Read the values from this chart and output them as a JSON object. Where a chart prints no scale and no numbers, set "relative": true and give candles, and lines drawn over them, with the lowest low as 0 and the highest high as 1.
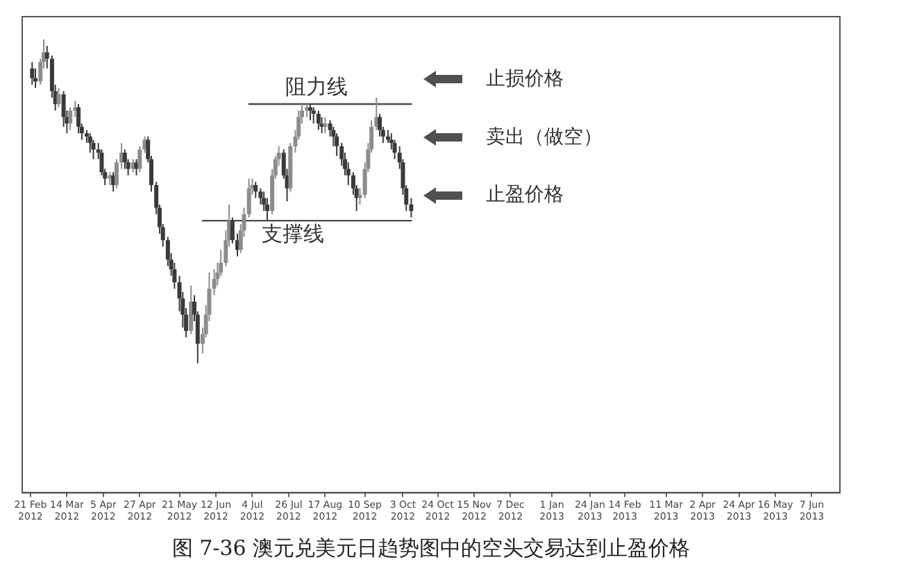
{
  "chart_data": {
    "type": "candlestick",
    "title": "图 7-36 澳元兑美元日趋势图中的空头交易达到止盈价格",
    "relative": true,
    "colors": [
      "#3a3a3a",
      "#3a3a3a",
      "#8c8c8c",
      "#8c8c8c",
      "#3a3a3a",
      "#3a3a3a",
      "#3a3a3a",
      "#8c8c8c",
      "#3a3a3a",
      "#3a3a3a",
      "#8c8c8c",
      "#8c8c8c",
      "#3a3a3a",
      "#3a3a3a",
      "#3a3a3a",
      "#3a3a3a",
      "#3a3a3a",
      "#3a3a3a",
      "#3a3a3a",
      "#3a3a3a",
      "#8c8c8c",
      "#3a3a3a",
      "#8c8c8c",
      "#8c8c8c",
      "#3a3a3a",
      "#3a3a3a",
      "#8c8c8c",
      "#3a3a3a",
      "#8c8c8c",
      "#8c8c8c",
      "#3a3a3a",
      "#3a3a3a",
      "#3a3a3a",
      "#3a3a3a",
      "#3a3a3a",
      "#3a3a3a",
      "#3a3a3a",
      "#3a3a3a",
      "#3a3a3a",
      "#3a3a3a",
      "#3a3a3a",
      "#8c8c8c",
      "#3a3a3a",
      "#3a3a3a",
      "#8c8c8c",
      "#8c8c8c",
      "#8c8c8c",
      "#8c8c8c",
      "#8c8c8c",
      "#8c8c8c",
      "#8c8c8c",
      "#8c8c8c",
      "#3a3a3a",
      "#3a3a3a",
      "#8c8c8c",
      "#8c8c8c",
      "#8c8c8c",
      "#8c8c8c",
      "#3a3a3a",
      "#3a3a3a",
      "#3a3a3a",
      "#3a3a3a",
      "#8c8c8c",
      "#8c8c8c",
      "#8c8c8c",
      "#3a3a3a",
      "#3a3a3a",
      "#8c8c8c",
      "#8c8c8c",
      "#8c8c8c",
      "#8c8c8c",
      "#8c8c8c",
      "#3a3a3a",
      "#3a3a3a",
      "#3a3a3a",
      "#3a3a3a",
      "#8c8c8c",
      "#3a3a3a",
      "#3a3a3a",
      "#3a3a3a",
      "#3a3a3a",
      "#3a3a3a",
      "#3a3a3a",
      "#3a3a3a",
      "#3a3a3a",
      "#8c8c8c",
      "#8c8c8c",
      "#8c8c8c",
      "#8c8c8c",
      "#8c8c8c",
      "#3a3a3a",
      "#3a3a3a",
      "#3a3a3a",
      "#3a3a3a",
      "#3a3a3a",
      "#3a3a3a",
      "#3a3a3a",
      "#3a3a3a",
      "#3a3a3a"
    ],
    "x": [
      "2012-02-22",
      "2012-02-24",
      "2012-02-27",
      "2012-02-29",
      "2012-03-02",
      "2012-03-05",
      "2012-03-07",
      "2012-03-09",
      "2012-03-12",
      "2012-03-14",
      "2012-03-16",
      "2012-03-19",
      "2012-03-21",
      "2012-03-23",
      "2012-03-26",
      "2012-03-28",
      "2012-03-30",
      "2012-04-02",
      "2012-04-04",
      "2012-04-06",
      "2012-04-09",
      "2012-04-11",
      "2012-04-13",
      "2012-04-16",
      "2012-04-18",
      "2012-04-20",
      "2012-04-23",
      "2012-04-25",
      "2012-04-27",
      "2012-04-30",
      "2012-05-02",
      "2012-05-04",
      "2012-05-07",
      "2012-05-09",
      "2012-05-11",
      "2012-05-14",
      "2012-05-16",
      "2012-05-18",
      "2012-05-21",
      "2012-05-23",
      "2012-05-25",
      "2012-05-28",
      "2012-05-30",
      "2012-06-01",
      "2012-06-04",
      "2012-06-06",
      "2012-06-08",
      "2012-06-11",
      "2012-06-13",
      "2012-06-15",
      "2012-06-18",
      "2012-06-20",
      "2012-06-22",
      "2012-06-25",
      "2012-06-27",
      "2012-06-29",
      "2012-07-02",
      "2012-07-04",
      "2012-07-06",
      "2012-07-09",
      "2012-07-11",
      "2012-07-13",
      "2012-07-16",
      "2012-07-18",
      "2012-07-20",
      "2012-07-23",
      "2012-07-25",
      "2012-07-27",
      "2012-07-30",
      "2012-08-01",
      "2012-08-03",
      "2012-08-06",
      "2012-08-08",
      "2012-08-10",
      "2012-08-13",
      "2012-08-15",
      "2012-08-17",
      "2012-08-20",
      "2012-08-22",
      "2012-08-24",
      "2012-08-27",
      "2012-08-29",
      "2012-08-31",
      "2012-09-03",
      "2012-09-05",
      "2012-09-07",
      "2012-09-10",
      "2012-09-12",
      "2012-09-14",
      "2012-09-17",
      "2012-09-19",
      "2012-09-21",
      "2012-09-24",
      "2012-09-26",
      "2012-09-28",
      "2012-10-01",
      "2012-10-03",
      "2012-10-05",
      "2012-10-08"
    ],
    "ohlc": [
      [
        0.91,
        0.93,
        0.86,
        0.88
      ],
      [
        0.88,
        0.91,
        0.85,
        0.87
      ],
      [
        0.87,
        0.94,
        0.86,
        0.93
      ],
      [
        0.93,
        1,
        0.91,
        0.96
      ],
      [
        0.96,
        0.98,
        0.91,
        0.94
      ],
      [
        0.94,
        0.95,
        0.82,
        0.84
      ],
      [
        0.84,
        0.86,
        0.78,
        0.8
      ],
      [
        0.8,
        0.85,
        0.79,
        0.83
      ],
      [
        0.83,
        0.84,
        0.73,
        0.76
      ],
      [
        0.76,
        0.78,
        0.71,
        0.74
      ],
      [
        0.74,
        0.79,
        0.72,
        0.78
      ],
      [
        0.78,
        0.81,
        0.76,
        0.79
      ],
      [
        0.79,
        0.8,
        0.71,
        0.73
      ],
      [
        0.73,
        0.74,
        0.69,
        0.71
      ],
      [
        0.71,
        0.72,
        0.68,
        0.7
      ],
      [
        0.7,
        0.71,
        0.65,
        0.68
      ],
      [
        0.68,
        0.69,
        0.63,
        0.66
      ],
      [
        0.66,
        0.68,
        0.63,
        0.65
      ],
      [
        0.65,
        0.66,
        0.58,
        0.59
      ],
      [
        0.59,
        0.6,
        0.55,
        0.57
      ],
      [
        0.57,
        0.59,
        0.55,
        0.58
      ],
      [
        0.58,
        0.59,
        0.53,
        0.55
      ],
      [
        0.55,
        0.63,
        0.54,
        0.62
      ],
      [
        0.62,
        0.68,
        0.6,
        0.65
      ],
      [
        0.65,
        0.66,
        0.6,
        0.62
      ],
      [
        0.62,
        0.63,
        0.58,
        0.6
      ],
      [
        0.6,
        0.63,
        0.59,
        0.62
      ],
      [
        0.62,
        0.63,
        0.58,
        0.6
      ],
      [
        0.6,
        0.67,
        0.59,
        0.66
      ],
      [
        0.66,
        0.7,
        0.65,
        0.69
      ],
      [
        0.69,
        0.7,
        0.62,
        0.63
      ],
      [
        0.63,
        0.64,
        0.53,
        0.55
      ],
      [
        0.55,
        0.56,
        0.46,
        0.48
      ],
      [
        0.48,
        0.49,
        0.4,
        0.42
      ],
      [
        0.42,
        0.43,
        0.36,
        0.38
      ],
      [
        0.38,
        0.39,
        0.3,
        0.32
      ],
      [
        0.32,
        0.34,
        0.27,
        0.29
      ],
      [
        0.29,
        0.31,
        0.23,
        0.25
      ],
      [
        0.25,
        0.27,
        0.16,
        0.2
      ],
      [
        0.2,
        0.22,
        0.11,
        0.15
      ],
      [
        0.15,
        0.17,
        0.08,
        0.1
      ],
      [
        0.1,
        0.24,
        0.09,
        0.19
      ],
      [
        0.19,
        0.21,
        0.13,
        0.15
      ],
      [
        0.15,
        0.16,
        0,
        0.06
      ],
      [
        0.06,
        0.11,
        0.03,
        0.09
      ],
      [
        0.09,
        0.18,
        0.08,
        0.15
      ],
      [
        0.15,
        0.28,
        0.13,
        0.23
      ],
      [
        0.23,
        0.29,
        0.21,
        0.26
      ],
      [
        0.26,
        0.31,
        0.24,
        0.28
      ],
      [
        0.28,
        0.35,
        0.27,
        0.31
      ],
      [
        0.31,
        0.41,
        0.3,
        0.38
      ],
      [
        0.38,
        0.49,
        0.36,
        0.44
      ],
      [
        0.44,
        0.45,
        0.37,
        0.38
      ],
      [
        0.38,
        0.4,
        0.33,
        0.35
      ],
      [
        0.35,
        0.43,
        0.34,
        0.41
      ],
      [
        0.41,
        0.48,
        0.39,
        0.46
      ],
      [
        0.46,
        0.57,
        0.45,
        0.54
      ],
      [
        0.54,
        0.57,
        0.52,
        0.55
      ],
      [
        0.55,
        0.56,
        0.51,
        0.53
      ],
      [
        0.53,
        0.54,
        0.49,
        0.51
      ],
      [
        0.51,
        0.53,
        0.47,
        0.49
      ],
      [
        0.49,
        0.51,
        0.44,
        0.47
      ],
      [
        0.47,
        0.6,
        0.46,
        0.58
      ],
      [
        0.58,
        0.64,
        0.57,
        0.63
      ],
      [
        0.63,
        0.67,
        0.61,
        0.65
      ],
      [
        0.65,
        0.66,
        0.57,
        0.58
      ],
      [
        0.58,
        0.6,
        0.5,
        0.54
      ],
      [
        0.54,
        0.68,
        0.53,
        0.67
      ],
      [
        0.67,
        0.72,
        0.65,
        0.7
      ],
      [
        0.7,
        0.78,
        0.69,
        0.76
      ],
      [
        0.76,
        0.8,
        0.74,
        0.78
      ],
      [
        0.78,
        0.8,
        0.76,
        0.79
      ],
      [
        0.79,
        0.8,
        0.75,
        0.78
      ],
      [
        0.78,
        0.79,
        0.74,
        0.77
      ],
      [
        0.77,
        0.78,
        0.72,
        0.74
      ],
      [
        0.74,
        0.76,
        0.71,
        0.73
      ],
      [
        0.73,
        0.76,
        0.71,
        0.74
      ],
      [
        0.74,
        0.75,
        0.7,
        0.72
      ],
      [
        0.72,
        0.73,
        0.67,
        0.7
      ],
      [
        0.7,
        0.71,
        0.64,
        0.67
      ],
      [
        0.67,
        0.68,
        0.61,
        0.63
      ],
      [
        0.63,
        0.65,
        0.58,
        0.6
      ],
      [
        0.6,
        0.62,
        0.55,
        0.58
      ],
      [
        0.58,
        0.59,
        0.52,
        0.54
      ],
      [
        0.54,
        0.55,
        0.47,
        0.51
      ],
      [
        0.51,
        0.54,
        0.49,
        0.52
      ],
      [
        0.52,
        0.62,
        0.51,
        0.6
      ],
      [
        0.6,
        0.68,
        0.59,
        0.66
      ],
      [
        0.66,
        0.75,
        0.65,
        0.73
      ],
      [
        0.73,
        0.82,
        0.72,
        0.76
      ],
      [
        0.76,
        0.77,
        0.7,
        0.72
      ],
      [
        0.72,
        0.73,
        0.68,
        0.7
      ],
      [
        0.7,
        0.72,
        0.68,
        0.69
      ],
      [
        0.69,
        0.71,
        0.66,
        0.68
      ],
      [
        0.68,
        0.69,
        0.63,
        0.65
      ],
      [
        0.65,
        0.67,
        0.6,
        0.62
      ],
      [
        0.62,
        0.63,
        0.52,
        0.54
      ],
      [
        0.54,
        0.55,
        0.47,
        0.49
      ],
      [
        0.49,
        0.51,
        0.45,
        0.47
      ]
    ],
    "series": [
      {
        "type": "line",
        "name": "阻力线",
        "color": "#4a4a4a",
        "x": [
          "2012-07-02",
          "2012-10-08"
        ],
        "values": [
          0.8,
          0.8
        ]
      },
      {
        "type": "line",
        "name": "支撑线",
        "color": "#4a4a4a",
        "x": [
          "2012-06-04",
          "2012-10-08"
        ],
        "values": [
          0.44,
          0.44
        ]
      }
    ],
    "xlim": [
      "2012-02-16",
      "2013-06-24"
    ],
    "xticks": [
      {
        "value": "2012-02-21",
        "label": "21 Feb 2012"
      },
      {
        "value": "2012-03-14",
        "label": "14 Mar 2012"
      },
      {
        "value": "2012-04-05",
        "label": "5 Apr 2012"
      },
      {
        "value": "2012-04-27",
        "label": "27 Apr 2012"
      },
      {
        "value": "2012-05-21",
        "label": "21 May 2012"
      },
      {
        "value": "2012-06-12",
        "label": "12 Jun 2012"
      },
      {
        "value": "2012-07-04",
        "label": "4 Jul 2012"
      },
      {
        "value": "2012-07-26",
        "label": "26 Jul 2012"
      },
      {
        "value": "2012-08-17",
        "label": "17 Aug 2012"
      },
      {
        "value": "2012-09-10",
        "label": "10 Sep 2012"
      },
      {
        "value": "2012-10-03",
        "label": "3 Oct 2012"
      },
      {
        "value": "2012-10-24",
        "label": "24 Oct 2012"
      },
      {
        "value": "2012-11-15",
        "label": "15 Nov 2012"
      },
      {
        "value": "2012-12-07",
        "label": "7 Dec 2012"
      },
      {
        "value": "2013-01-01",
        "label": "1 Jan 2013"
      },
      {
        "value": "2013-01-24",
        "label": "24 Jan 2013"
      },
      {
        "value": "2013-02-14",
        "label": "14 Feb 2013"
      },
      {
        "value": "2013-03-11",
        "label": "11 Mar 2013"
      },
      {
        "value": "2013-04-02",
        "label": "2 Apr 2013"
      },
      {
        "value": "2013-04-24",
        "label": "24 Apr 2013"
      },
      {
        "value": "2013-05-16",
        "label": "16 May 2013"
      },
      {
        "value": "2013-06-07",
        "label": "7 Jun 2013"
      }
    ],
    "annotations": [
      "止损价格",
      "卖出（做空）",
      "止盈价格"
    ]
  }
}
